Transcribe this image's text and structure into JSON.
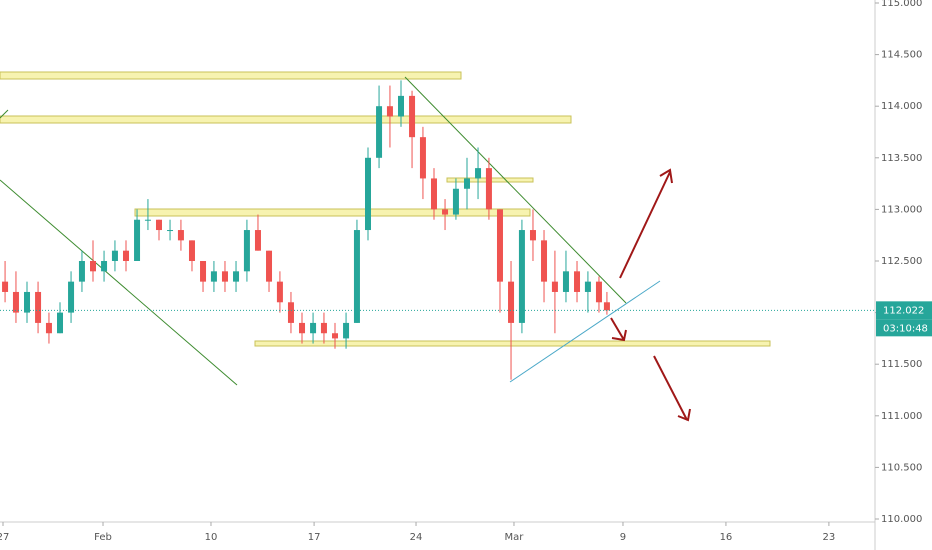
{
  "chart_data": {
    "type": "candlestick",
    "x": [
      0.14,
      0.88,
      1.63,
      2.38,
      3.12,
      3.87,
      4.62,
      5.36,
      6.11,
      6.86,
      7.6,
      8.35,
      9.1,
      9.84,
      10.59,
      11.34,
      12.08,
      12.83,
      13.58,
      14.32,
      15.07,
      15.82,
      16.56,
      17.31,
      18.06,
      18.8,
      19.55,
      20.3,
      21.05,
      21.79,
      22.54,
      23.29,
      24.03,
      24.78,
      25.53,
      26.27,
      27.02,
      27.77,
      28.51,
      29.26,
      30.01,
      30.75,
      31.5,
      32.25,
      32.99,
      33.74,
      34.49,
      35.23,
      35.98,
      36.73,
      37.47,
      38.22,
      38.97,
      39.71,
      40.46,
      41.0
    ],
    "open": [
      112.3,
      112.2,
      112.0,
      112.2,
      111.9,
      111.8,
      112.0,
      112.3,
      112.5,
      112.4,
      112.5,
      112.6,
      112.5,
      112.9,
      112.9,
      112.8,
      112.8,
      112.7,
      112.5,
      112.3,
      112.4,
      112.3,
      112.4,
      112.8,
      112.6,
      112.3,
      112.1,
      111.9,
      111.8,
      111.9,
      111.8,
      111.75,
      111.9,
      112.8,
      113.5,
      114.0,
      113.9,
      114.1,
      113.7,
      113.3,
      113.0,
      112.95,
      113.2,
      113.3,
      113.4,
      113.0,
      112.3,
      111.9,
      112.8,
      112.7,
      112.3,
      112.2,
      112.4,
      112.2,
      112.3,
      112.1
    ],
    "high": [
      112.5,
      112.4,
      112.3,
      112.3,
      112.0,
      112.1,
      112.4,
      112.6,
      112.7,
      112.6,
      112.7,
      112.7,
      113.0,
      113.1,
      112.9,
      112.9,
      112.9,
      112.7,
      112.5,
      112.5,
      112.5,
      112.5,
      112.9,
      112.95,
      112.6,
      112.4,
      112.2,
      112.0,
      112.0,
      112.0,
      111.9,
      112.0,
      112.9,
      113.6,
      114.2,
      114.2,
      114.25,
      114.15,
      113.8,
      113.4,
      113.1,
      113.3,
      113.5,
      113.6,
      113.5,
      113.0,
      112.5,
      112.9,
      113.0,
      112.8,
      112.6,
      112.6,
      112.5,
      112.4,
      112.35,
      112.2
    ],
    "low": [
      112.1,
      111.9,
      111.9,
      111.8,
      111.7,
      111.8,
      111.9,
      112.2,
      112.3,
      112.3,
      112.4,
      112.4,
      112.5,
      112.8,
      112.7,
      112.7,
      112.6,
      112.4,
      112.2,
      112.2,
      112.2,
      112.2,
      112.3,
      112.6,
      112.2,
      112.0,
      111.8,
      111.7,
      111.7,
      111.7,
      111.65,
      111.65,
      111.9,
      112.7,
      113.4,
      113.6,
      113.8,
      113.4,
      113.1,
      112.9,
      112.8,
      112.9,
      113.0,
      113.1,
      112.9,
      112.0,
      111.35,
      111.8,
      112.5,
      112.1,
      111.8,
      112.1,
      112.1,
      112.0,
      112.0,
      111.98
    ],
    "close": [
      112.2,
      112.0,
      112.2,
      111.9,
      111.8,
      112.0,
      112.3,
      112.5,
      112.4,
      112.5,
      112.6,
      112.5,
      112.9,
      112.9,
      112.8,
      112.8,
      112.7,
      112.5,
      112.3,
      112.4,
      112.3,
      112.4,
      112.8,
      112.6,
      112.3,
      112.1,
      111.9,
      111.8,
      111.9,
      111.8,
      111.75,
      111.9,
      112.8,
      113.5,
      114.0,
      113.9,
      114.1,
      113.7,
      113.3,
      113.0,
      112.95,
      113.2,
      113.3,
      113.4,
      113.0,
      112.3,
      111.9,
      112.8,
      112.7,
      112.3,
      112.2,
      112.4,
      112.2,
      112.3,
      112.1,
      112.022
    ],
    "up_color": "#26a69a",
    "down_color": "#ef5350",
    "xlim": [
      -0.2,
      59.2
    ],
    "ylim": [
      110,
      115.03
    ],
    "xticks": [
      {
        "value": 0,
        "label": "27"
      },
      {
        "value": 6.79,
        "label": "Feb"
      },
      {
        "value": 14.12,
        "label": "10"
      },
      {
        "value": 21.12,
        "label": "17"
      },
      {
        "value": 28.04,
        "label": "24"
      },
      {
        "value": 34.69,
        "label": "Mar"
      },
      {
        "value": 42.09,
        "label": "9"
      },
      {
        "value": 49.08,
        "label": "16"
      },
      {
        "value": 56.07,
        "label": "23"
      }
    ],
    "yticks": [
      {
        "value": 110,
        "label": "110.000"
      },
      {
        "value": 110.5,
        "label": "110.500"
      },
      {
        "value": 111,
        "label": "111.000"
      },
      {
        "value": 111.5,
        "label": "111.500"
      },
      {
        "value": 112,
        "label": "112.000"
      },
      {
        "value": 112.5,
        "label": "112.500"
      },
      {
        "value": 113,
        "label": "113.000"
      },
      {
        "value": 113.5,
        "label": "113.500"
      },
      {
        "value": 114,
        "label": "114.000"
      },
      {
        "value": 114.5,
        "label": "114.500"
      },
      {
        "value": 115,
        "label": "115.000"
      }
    ],
    "last_price": 112.022,
    "countdown": "03:10:48",
    "grid": false
  }
}
